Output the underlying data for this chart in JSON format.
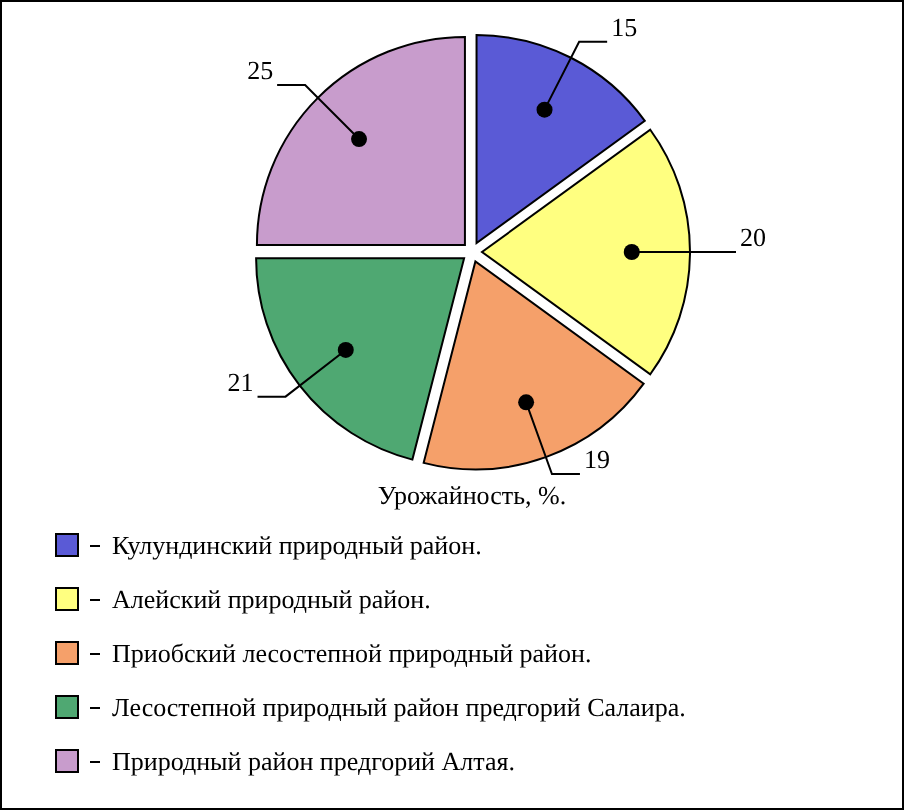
{
  "chart_data": {
    "type": "pie",
    "title": "Урожайность, %.",
    "categories": [
      "Кулундинский природный район.",
      "Алейский природный район.",
      "Приобский лесостепной природный район.",
      "Лесостепной природный район предгорий Салаира.",
      "Природный район предгорий Алтая."
    ],
    "values": [
      15,
      20,
      19,
      21,
      25
    ],
    "colors": [
      "#5a5ad6",
      "#ffff80",
      "#f5a06a",
      "#4fa872",
      "#c89ccc"
    ],
    "data_labels": true,
    "legend": "bottom"
  }
}
